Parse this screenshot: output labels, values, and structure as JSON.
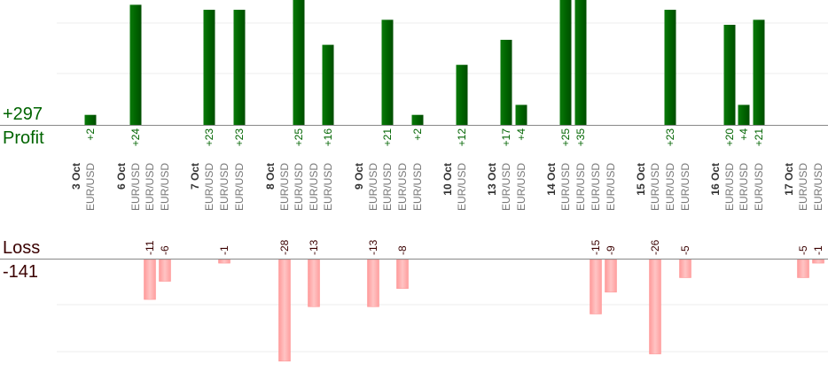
{
  "summary": {
    "profit_value": "+297",
    "profit_label": "Profit",
    "loss_label": "Loss",
    "loss_value": "-141"
  },
  "colors": {
    "profit_bar": "#006400",
    "loss_bar": "#ffb3b3",
    "profit_text": "#006400",
    "loss_text": "#3a0000",
    "pair_text": "#777777",
    "date_text": "#333333",
    "axis": "#888888",
    "grid": "#eeeeee"
  },
  "chart_data": {
    "type": "bar",
    "trades": [
      {
        "date": "3 Oct",
        "pair": "EUR/USD",
        "value": 2,
        "label": "+2"
      },
      {
        "date": "6 Oct",
        "pair": "EUR/USD",
        "value": 24,
        "label": "+24"
      },
      {
        "date": "",
        "pair": "EUR/USD",
        "value": -11,
        "label": "-11"
      },
      {
        "date": "",
        "pair": "EUR/USD",
        "value": -6,
        "label": "-6"
      },
      {
        "date": "7 Oct",
        "pair": "EUR/USD",
        "value": 23,
        "label": "+23"
      },
      {
        "date": "",
        "pair": "EUR/USD",
        "value": -1,
        "label": "-1"
      },
      {
        "date": "",
        "pair": "EUR/USD",
        "value": 23,
        "label": "+23"
      },
      {
        "date": "8 Oct",
        "pair": "EUR/USD",
        "value": -28,
        "label": "-28"
      },
      {
        "date": "",
        "pair": "EUR/USD",
        "value": 25,
        "label": "+25"
      },
      {
        "date": "",
        "pair": "EUR/USD",
        "value": -13,
        "label": "-13"
      },
      {
        "date": "",
        "pair": "EUR/USD",
        "value": 16,
        "label": "+16"
      },
      {
        "date": "9 Oct",
        "pair": "EUR/USD",
        "value": -13,
        "label": "-13"
      },
      {
        "date": "",
        "pair": "EUR/USD",
        "value": 21,
        "label": "+21"
      },
      {
        "date": "",
        "pair": "EUR/USD",
        "value": -8,
        "label": "-8"
      },
      {
        "date": "",
        "pair": "EUR/USD",
        "value": 2,
        "label": "+2"
      },
      {
        "date": "10 Oct",
        "pair": "EUR/USD",
        "value": 12,
        "label": "+12"
      },
      {
        "date": "13 Oct",
        "pair": "EUR/USD",
        "value": 17,
        "label": "+17"
      },
      {
        "date": "",
        "pair": "EUR/USD",
        "value": 4,
        "label": "+4"
      },
      {
        "date": "14 Oct",
        "pair": "EUR/USD",
        "value": 25,
        "label": "+25"
      },
      {
        "date": "",
        "pair": "EUR/USD",
        "value": 35,
        "label": "+35"
      },
      {
        "date": "",
        "pair": "EUR/USD",
        "value": -15,
        "label": "-15"
      },
      {
        "date": "",
        "pair": "EUR/USD",
        "value": -9,
        "label": "-9"
      },
      {
        "date": "15 Oct",
        "pair": "EUR/USD",
        "value": -26,
        "label": "-26"
      },
      {
        "date": "",
        "pair": "EUR/USD",
        "value": 23,
        "label": "+23"
      },
      {
        "date": "",
        "pair": "EUR/USD",
        "value": -5,
        "label": "-5"
      },
      {
        "date": "16 Oct",
        "pair": "EUR/USD",
        "value": 20,
        "label": "+20"
      },
      {
        "date": "",
        "pair": "EUR/USD",
        "value": 4,
        "label": "+4"
      },
      {
        "date": "",
        "pair": "EUR/USD",
        "value": 21,
        "label": "+21"
      },
      {
        "date": "17 Oct",
        "pair": "EUR/USD",
        "value": -5,
        "label": "-5"
      },
      {
        "date": "",
        "pair": "EUR/USD",
        "value": -1,
        "label": "-1"
      }
    ],
    "grid": true
  }
}
